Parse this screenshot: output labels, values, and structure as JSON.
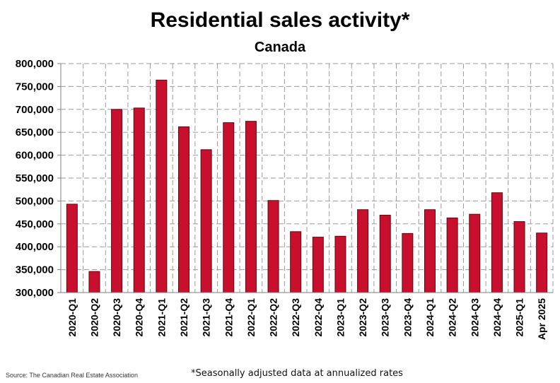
{
  "chart_data": {
    "type": "bar",
    "title": "Residential sales activity*",
    "subtitle": "Canada",
    "xlabel": "",
    "ylabel": "",
    "categories": [
      "2020-Q1",
      "2020-Q2",
      "2020-Q3",
      "2020-Q4",
      "2021-Q1",
      "2021-Q2",
      "2021-Q3",
      "2021-Q4",
      "2022-Q1",
      "2022-Q2",
      "2022-Q3",
      "2022-Q4",
      "2023-Q1",
      "2023-Q2",
      "2023-Q3",
      "2023-Q4",
      "2024-Q1",
      "2024-Q2",
      "2024-Q3",
      "2024-Q4",
      "2025-Q1",
      "Apr 2025"
    ],
    "values": [
      493000,
      346000,
      700000,
      703000,
      764000,
      662000,
      612000,
      671000,
      674000,
      501000,
      433000,
      421000,
      423000,
      481000,
      469000,
      429000,
      481000,
      463000,
      471000,
      518000,
      455000,
      430000
    ],
    "ylim": [
      300000,
      800000
    ],
    "yticks": [
      "300,000",
      "350,000",
      "400,000",
      "450,000",
      "500,000",
      "550,000",
      "600,000",
      "650,000",
      "700,000",
      "750,000",
      "800,000"
    ],
    "ytick_values": [
      300000,
      350000,
      400000,
      450000,
      500000,
      550000,
      600000,
      650000,
      700000,
      750000,
      800000
    ],
    "grid": true,
    "bar_color": "#c8102e",
    "bar_edge_color": "#5a0a12",
    "source": "Source: The Canadian Real Estate Association",
    "footnote": "*Seasonally adjusted data at annualized rates"
  }
}
